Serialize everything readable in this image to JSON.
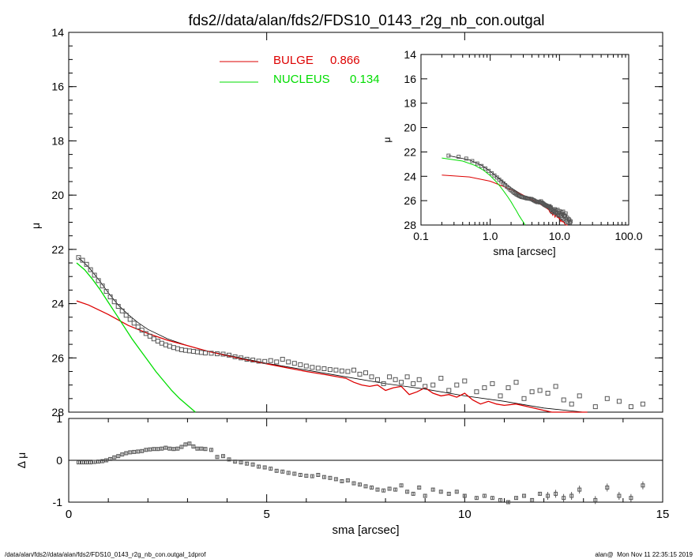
{
  "header": {
    "title": "fds2//data/alan/fds2/FDS10_0143_r2g_nb_con.outgal"
  },
  "footer": {
    "path": "/data/alan/fds2//data/alan/fds2/FDS10_0143_r2g_nb_con.outgal_1dprof",
    "user": "alan@",
    "timestamp": "Mon Nov 11 22:35:15 2019"
  },
  "colors": {
    "bulge": "#dd0000",
    "nucleus": "#00dd00",
    "model": "#000000",
    "data": "#555555"
  },
  "chart_data": [
    {
      "id": "main",
      "type": "line",
      "xlabel": "",
      "ylabel": "μ",
      "xlim": [
        0,
        15
      ],
      "ylim": [
        28,
        14
      ],
      "yticks": [
        14,
        16,
        18,
        20,
        22,
        24,
        26,
        28
      ],
      "legend": [
        {
          "label": "BULGE",
          "value": "0.866",
          "color": "#dd0000"
        },
        {
          "label": "NUCLEUS",
          "value": "0.134",
          "color": "#00dd00"
        }
      ],
      "data_points": {
        "x": [
          0.25,
          0.35,
          0.45,
          0.55,
          0.65,
          0.75,
          0.85,
          0.95,
          1.05,
          1.15,
          1.25,
          1.35,
          1.45,
          1.55,
          1.65,
          1.75,
          1.85,
          1.95,
          2.05,
          2.15,
          2.25,
          2.35,
          2.45,
          2.55,
          2.65,
          2.75,
          2.85,
          2.95,
          3.05,
          3.15,
          3.25,
          3.35,
          3.45,
          3.6,
          3.75,
          3.9,
          4.05,
          4.2,
          4.35,
          4.5,
          4.65,
          4.8,
          4.95,
          5.1,
          5.25,
          5.4,
          5.55,
          5.7,
          5.85,
          6.0,
          6.15,
          6.3,
          6.45,
          6.6,
          6.75,
          6.9,
          7.05,
          7.2,
          7.35,
          7.5,
          7.65,
          7.8,
          7.95,
          8.1,
          8.25,
          8.4,
          8.55,
          8.7,
          8.85,
          9.0,
          9.2,
          9.4,
          9.6,
          9.8,
          10.0,
          10.3,
          10.5,
          10.7,
          10.9,
          11.1,
          11.3,
          11.5,
          11.7,
          11.9,
          12.1,
          12.3,
          12.5,
          12.7,
          12.9,
          13.3,
          13.6,
          13.9,
          14.2,
          14.5
        ],
        "y": [
          22.3,
          22.4,
          22.55,
          22.75,
          22.95,
          23.15,
          23.35,
          23.55,
          23.75,
          23.93,
          24.1,
          24.27,
          24.43,
          24.58,
          24.72,
          24.86,
          24.98,
          25.1,
          25.2,
          25.3,
          25.38,
          25.46,
          25.52,
          25.57,
          25.62,
          25.66,
          25.7,
          25.72,
          25.74,
          25.76,
          25.78,
          25.8,
          25.82,
          25.83,
          25.85,
          25.86,
          25.9,
          25.96,
          26.0,
          26.05,
          26.08,
          26.12,
          26.13,
          26.1,
          26.15,
          26.05,
          26.15,
          26.2,
          26.25,
          26.3,
          26.35,
          26.38,
          26.4,
          26.43,
          26.45,
          26.48,
          26.5,
          26.45,
          26.6,
          26.55,
          26.7,
          26.8,
          26.95,
          26.7,
          26.8,
          26.9,
          26.7,
          26.95,
          26.8,
          27.05,
          27.0,
          26.75,
          27.2,
          27.0,
          26.85,
          27.25,
          27.1,
          26.95,
          27.4,
          27.1,
          26.9,
          27.5,
          27.25,
          27.2,
          27.3,
          27.05,
          27.55,
          27.7,
          27.4,
          27.8,
          27.5,
          27.6,
          27.8,
          27.7
        ],
        "residual": [
          -0.05,
          -0.05,
          -0.05,
          -0.05,
          -0.04,
          -0.03,
          -0.02,
          0.0,
          0.03,
          0.07,
          0.1,
          0.14,
          0.17,
          0.19,
          0.2,
          0.21,
          0.22,
          0.25,
          0.26,
          0.27,
          0.27,
          0.28,
          0.3,
          0.28,
          0.27,
          0.28,
          0.32,
          0.38,
          0.4,
          0.33,
          0.28,
          0.28,
          0.27,
          0.25,
          0.08,
          0.1,
          0.02,
          -0.03,
          -0.05,
          -0.08,
          -0.1,
          -0.15,
          -0.17,
          -0.2,
          -0.25,
          -0.27,
          -0.3,
          -0.32,
          -0.35,
          -0.37,
          -0.38,
          -0.35,
          -0.4,
          -0.42,
          -0.45,
          -0.5,
          -0.48,
          -0.55,
          -0.58,
          -0.62,
          -0.65,
          -0.7,
          -0.72,
          -0.68,
          -0.7,
          -0.6,
          -0.75,
          -0.8,
          -0.65,
          -0.85,
          -0.7,
          -0.75,
          -0.8,
          -0.75,
          -0.85,
          -0.9,
          -0.85,
          -0.9,
          -0.95,
          -1.0,
          -0.9,
          -0.85,
          -0.95,
          -0.8,
          -0.85,
          -0.8,
          -0.9,
          -0.85,
          -0.7,
          -0.95,
          -0.65,
          -0.85,
          -0.9,
          -0.6
        ]
      },
      "model_curve": {
        "x": [
          0.25,
          0.5,
          0.75,
          1.0,
          1.25,
          1.5,
          1.75,
          2.0,
          2.5,
          3.0,
          3.5,
          4.0,
          5.0,
          6.0,
          7.0,
          8.0,
          9.0,
          10.0,
          11.0,
          12.0,
          13.0
        ],
        "y": [
          22.3,
          22.65,
          23.1,
          23.6,
          24.05,
          24.4,
          24.7,
          24.95,
          25.3,
          25.55,
          25.75,
          25.9,
          26.2,
          26.45,
          26.7,
          26.95,
          27.15,
          27.4,
          27.6,
          27.85,
          28.05
        ]
      },
      "bulge_curve": {
        "x": [
          0.2,
          0.5,
          1.0,
          1.5,
          2.0,
          2.5,
          3.0,
          3.5,
          4.0,
          4.5,
          5.0,
          5.5,
          6.0,
          6.5,
          7.0,
          7.2,
          7.4,
          7.6,
          7.8,
          8.0,
          8.2,
          8.4,
          8.6,
          8.8,
          9.0,
          9.2,
          9.4,
          9.6,
          9.8,
          10.0,
          10.2,
          10.4,
          10.6,
          10.8,
          11.0,
          11.3,
          11.6,
          11.9,
          12.2,
          12.5,
          12.8,
          13.1
        ],
        "y": [
          23.9,
          24.05,
          24.4,
          24.8,
          25.1,
          25.35,
          25.55,
          25.75,
          25.92,
          26.08,
          26.22,
          26.36,
          26.5,
          26.62,
          26.75,
          26.9,
          27.0,
          27.05,
          27.0,
          27.2,
          27.1,
          27.05,
          27.35,
          27.25,
          27.1,
          27.3,
          27.4,
          27.35,
          27.45,
          27.3,
          27.55,
          27.7,
          27.6,
          27.7,
          27.75,
          27.7,
          27.8,
          27.9,
          28.05,
          28.0,
          28.1,
          28.0
        ]
      },
      "nucleus_curve": {
        "x": [
          0.2,
          0.4,
          0.6,
          0.8,
          1.0,
          1.2,
          1.4,
          1.6,
          1.8,
          2.0,
          2.2,
          2.4,
          2.6,
          2.8,
          3.0,
          3.2
        ],
        "y": [
          22.5,
          22.75,
          23.1,
          23.5,
          23.95,
          24.4,
          24.85,
          25.3,
          25.7,
          26.1,
          26.5,
          26.85,
          27.2,
          27.5,
          27.75,
          28.0
        ]
      }
    },
    {
      "id": "residual",
      "type": "scatter",
      "xlabel": "sma [arcsec]",
      "ylabel": "Δ μ",
      "xlim": [
        0,
        15
      ],
      "ylim": [
        -1,
        1
      ],
      "xticks": [
        0,
        5,
        10,
        15
      ],
      "yticks": [
        1,
        0,
        -1
      ],
      "reference_line": 0
    },
    {
      "id": "inset",
      "type": "line",
      "xscale": "log",
      "xlabel": "sma [arcsec]",
      "ylabel": "μ",
      "xlim": [
        0.1,
        100
      ],
      "ylim": [
        28,
        14
      ],
      "xtick_labels": [
        "0.1",
        "1.0",
        "10.0",
        "100.0"
      ],
      "yticks": [
        14,
        16,
        18,
        20,
        22,
        24,
        26,
        28
      ]
    }
  ]
}
